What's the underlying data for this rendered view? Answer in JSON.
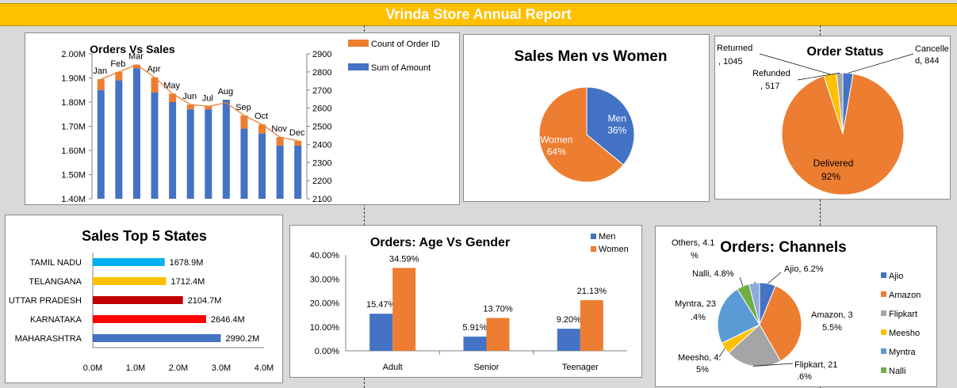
{
  "header": {
    "title": "Vrinda Store Annual Report",
    "background": "#ffc000"
  },
  "colors": {
    "blue": "#4472c4",
    "orange": "#ed7d31",
    "gray": "#a5a5a5",
    "yellow": "#ffc000",
    "lightblue": "#5b9bd5",
    "green": "#70ad47"
  },
  "charts": {
    "orders_vs_sales": {
      "type": "bar",
      "title": "Orders  Vs  Sales",
      "categories": [
        "Jan",
        "Feb",
        "Mar",
        "Apr",
        "May",
        "Jun",
        "Jul",
        "Aug",
        "Sep",
        "Oct",
        "Nov",
        "Dec"
      ],
      "series": [
        {
          "name": "Sum of Amount",
          "axis": "left",
          "values": [
            1.85,
            1.89,
            1.94,
            1.84,
            1.8,
            1.77,
            1.77,
            1.81,
            1.69,
            1.67,
            1.62,
            1.62
          ]
        },
        {
          "name": "Count of Order ID",
          "axis": "right",
          "type": "line",
          "values": [
            2760,
            2800,
            2840,
            2770,
            2680,
            2620,
            2610,
            2630,
            2560,
            2510,
            2440,
            2420
          ]
        }
      ],
      "left_axis": {
        "ylim": [
          1.4,
          2.0
        ],
        "ticks": [
          "1.40M",
          "1.50M",
          "1.60M",
          "1.70M",
          "1.80M",
          "1.90M",
          "2.00M"
        ]
      },
      "right_axis": {
        "ylim": [
          2100,
          2900
        ],
        "ticks": [
          "2100",
          "2200",
          "2300",
          "2400",
          "2500",
          "2600",
          "2700",
          "2800",
          "2900"
        ]
      },
      "legend": [
        "Count of Order ID",
        "Sum of Amount"
      ]
    },
    "men_vs_women": {
      "type": "pie",
      "title": "Sales Men vs Women",
      "slices": [
        {
          "name": "Men",
          "value": 36,
          "pct": "36%"
        },
        {
          "name": "Women",
          "value": 64,
          "pct": "64%"
        }
      ]
    },
    "order_status": {
      "type": "pie",
      "title": "Order Status",
      "slices": [
        {
          "name": "Cancelled",
          "value": 844,
          "label_a": "Cancelle",
          "label_b": "d, 844"
        },
        {
          "name": "Delivered",
          "value": 28641,
          "label_a": "Delivered",
          "label_b": "92%"
        },
        {
          "name": "Returned",
          "value": 1045,
          "label_a": "Returned",
          "label_b": ", 1045"
        },
        {
          "name": "Refunded",
          "value": 517,
          "label_a": "Refunded",
          "label_b": ", 517"
        }
      ]
    },
    "top_states": {
      "type": "bar",
      "orientation": "horizontal",
      "title": "Sales Top 5 States",
      "categories": [
        "TAMIL NADU",
        "TELANGANA",
        "UTTAR PRADESH",
        "KARNATAKA",
        "MAHARASHTRA"
      ],
      "values": [
        1678.9,
        1712.4,
        2104.7,
        2646.4,
        2990.2
      ],
      "value_labels": [
        "1678.9M",
        "1712.4M",
        "2104.7M",
        "2646.4M",
        "2990.2M"
      ],
      "colors": [
        "#00b0f0",
        "#ffc000",
        "#c00000",
        "#ff0000",
        "#4472c4"
      ],
      "xlim": [
        0,
        4
      ],
      "x_ticks": [
        "0.0M",
        "1.0M",
        "2.0M",
        "3.0M",
        "4.0M"
      ]
    },
    "age_vs_gender": {
      "type": "bar",
      "title": "Orders: Age Vs Gender",
      "categories": [
        "Adult",
        "Senior",
        "Teenager"
      ],
      "series": [
        {
          "name": "Men",
          "values": [
            15.47,
            5.91,
            9.2
          ],
          "labels": [
            "15.47%",
            "5.91%",
            "9.20%"
          ]
        },
        {
          "name": "Women",
          "values": [
            34.59,
            13.7,
            21.13
          ],
          "labels": [
            "34.59%",
            "13.70%",
            "21.13%"
          ]
        }
      ],
      "ylim": [
        0,
        40
      ],
      "y_ticks": [
        "0.00%",
        "10.00%",
        "20.00%",
        "30.00%",
        "40.00%"
      ],
      "legend": [
        "Men",
        "Women"
      ]
    },
    "channels": {
      "type": "pie",
      "title": "Orders: Channels",
      "slices": [
        {
          "name": "Ajio",
          "value": 6.2,
          "label_a": "Ajio, 6.2%",
          "label_b": ""
        },
        {
          "name": "Amazon",
          "value": 35.5,
          "label_a": "Amazon, 3",
          "label_b": "5.5%"
        },
        {
          "name": "Flipkart",
          "value": 21.6,
          "label_a": "Flipkart, 21",
          "label_b": ".6%"
        },
        {
          "name": "Meesho",
          "value": 4.5,
          "label_a": "Meesho, 4.",
          "label_b": "5%"
        },
        {
          "name": "Myntra",
          "value": 23.4,
          "label_a": "Myntra, 23",
          "label_b": ".4%"
        },
        {
          "name": "Nalli",
          "value": 4.8,
          "label_a": "Nalli, 4.8%",
          "label_b": ""
        },
        {
          "name": "Others",
          "value": 4.1,
          "label_a": "Others, 4.1",
          "label_b": "%"
        }
      ],
      "legend": [
        "Ajio",
        "Amazon",
        "Flipkart",
        "Meesho",
        "Myntra",
        "Nalli"
      ]
    }
  }
}
